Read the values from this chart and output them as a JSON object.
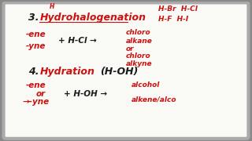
{
  "background_color": "#888888",
  "board_color": "#f9f9f5",
  "board_edge_color": "#aaaaaa",
  "black_color": "#1a1a1a",
  "red_color": "#cc1111",
  "super_h": "H",
  "label3_num": "3.",
  "label3_word": "Hydrohalogenation",
  "reagents3_top": "H-Br  H-Cl",
  "reagents3_bot": "H-F  H-I",
  "reactant3a": "-ene",
  "reactant3b": "-yne",
  "reagent3": "+ H-Cl →",
  "product3a": "chloro",
  "product3b": "alkane",
  "product3c": "or",
  "product3d": "chloro",
  "product3e": "alkyne",
  "label4_num": "4.",
  "label4_word": "Hydration",
  "label4_paren": "(H-OH)",
  "reactant4a": "-ene",
  "reactant4b": "or",
  "reactant4c": "→-yne",
  "reagent4": "+ H-OH →",
  "product4a": "alcohol",
  "product4b": "alkene/alco"
}
